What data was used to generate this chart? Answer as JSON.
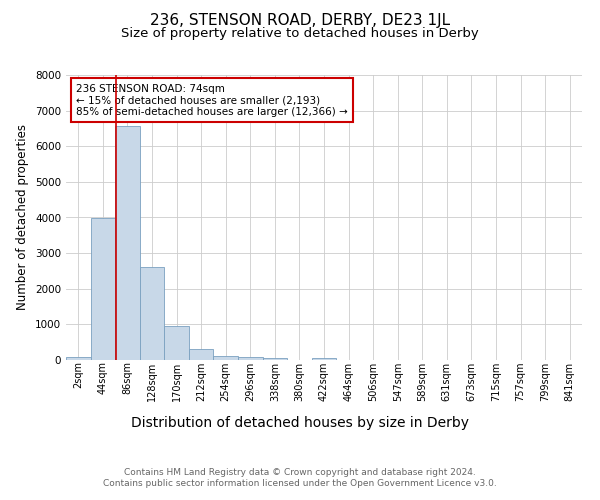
{
  "title1": "236, STENSON ROAD, DERBY, DE23 1JL",
  "title2": "Size of property relative to detached houses in Derby",
  "xlabel": "Distribution of detached houses by size in Derby",
  "ylabel": "Number of detached properties",
  "categories": [
    "2sqm",
    "44sqm",
    "86sqm",
    "128sqm",
    "170sqm",
    "212sqm",
    "254sqm",
    "296sqm",
    "338sqm",
    "380sqm",
    "422sqm",
    "464sqm",
    "506sqm",
    "547sqm",
    "589sqm",
    "631sqm",
    "673sqm",
    "715sqm",
    "757sqm",
    "799sqm",
    "841sqm"
  ],
  "values": [
    80,
    3980,
    6580,
    2620,
    960,
    310,
    120,
    90,
    60,
    0,
    60,
    0,
    0,
    0,
    0,
    0,
    0,
    0,
    0,
    0,
    0
  ],
  "bar_color": "#c8d8e8",
  "bar_edge_color": "#7aa0c0",
  "vline_color": "#cc0000",
  "annotation_text": "236 STENSON ROAD: 74sqm\n← 15% of detached houses are smaller (2,193)\n85% of semi-detached houses are larger (12,366) →",
  "annotation_box_color": "white",
  "annotation_box_edge": "#cc0000",
  "ylim": [
    0,
    8000
  ],
  "yticks": [
    0,
    1000,
    2000,
    3000,
    4000,
    5000,
    6000,
    7000,
    8000
  ],
  "footer": "Contains HM Land Registry data © Crown copyright and database right 2024.\nContains public sector information licensed under the Open Government Licence v3.0.",
  "title1_fontsize": 11,
  "title2_fontsize": 9.5,
  "xlabel_fontsize": 10,
  "ylabel_fontsize": 8.5,
  "tick_fontsize": 7,
  "footer_fontsize": 6.5,
  "annotation_fontsize": 7.5,
  "background_color": "white",
  "grid_color": "#cccccc"
}
